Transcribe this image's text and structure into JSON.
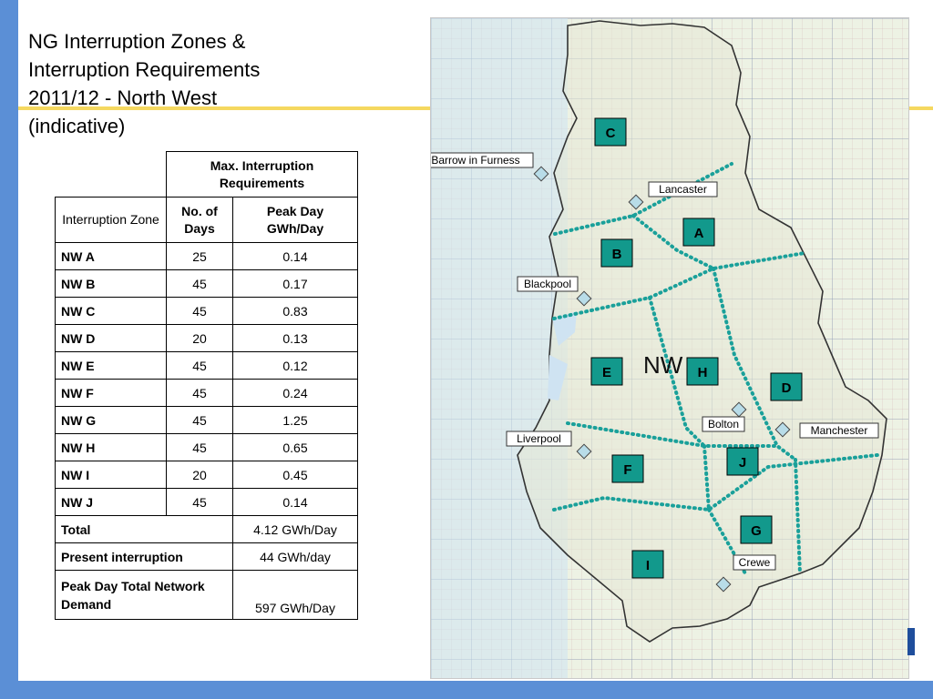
{
  "slide": {
    "title_lines": [
      "NG Interruption Zones &",
      "Interruption Requirements",
      "2011/12 - North West",
      "(indicative)"
    ],
    "colors": {
      "frame_blue": "#5b8fd6",
      "accent_yellow": "#f5d860",
      "zone_teal": "#12998c",
      "boundary_dots": "#1aa09a"
    }
  },
  "table": {
    "group_header": "Max. Interruption Requirements",
    "col_headers": [
      "Interruption Zone",
      "No. of Days",
      "Peak Day GWh/Day"
    ],
    "rows": [
      {
        "zone": "NW A",
        "days": "25",
        "peak": "0.14"
      },
      {
        "zone": "NW B",
        "days": "45",
        "peak": "0.17"
      },
      {
        "zone": "NW C",
        "days": "45",
        "peak": "0.83"
      },
      {
        "zone": "NW D",
        "days": "20",
        "peak": "0.13"
      },
      {
        "zone": "NW E",
        "days": "45",
        "peak": "0.12"
      },
      {
        "zone": "NW F",
        "days": "45",
        "peak": "0.24"
      },
      {
        "zone": "NW G",
        "days": "45",
        "peak": "1.25"
      },
      {
        "zone": "NW H",
        "days": "45",
        "peak": "0.65"
      },
      {
        "zone": "NW I",
        "days": "20",
        "peak": "0.45"
      },
      {
        "zone": "NW J",
        "days": "45",
        "peak": "0.14"
      }
    ],
    "total": {
      "label": "Total",
      "value": "4.12 GWh/Day"
    },
    "present": {
      "label": "Present interruption",
      "value": "44 GWh/day"
    },
    "demand": {
      "label": "Peak Day Total Network Demand",
      "value": "597 GWh/Day"
    }
  },
  "map": {
    "region_label": "NW",
    "zones": [
      "C",
      "A",
      "B",
      "E",
      "H",
      "D",
      "J",
      "F",
      "G",
      "I"
    ],
    "towns": [
      "Barrow in Furness",
      "Lancaster",
      "Blackpool",
      "Bolton",
      "Manchester",
      "Liverpool",
      "Crewe"
    ],
    "marker_icon": "diamond-icon"
  }
}
